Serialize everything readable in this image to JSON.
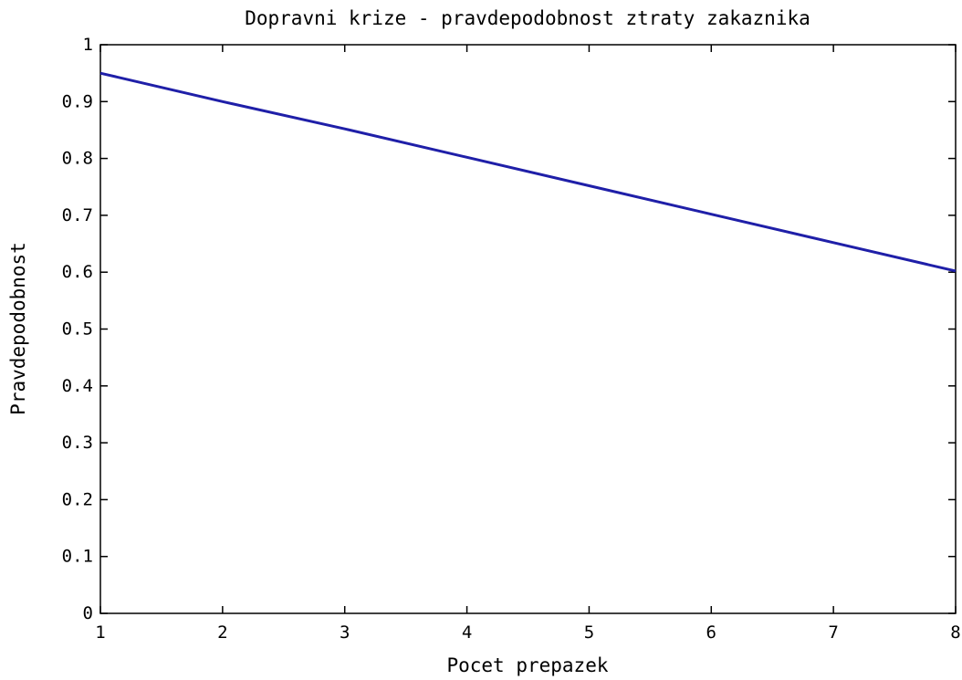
{
  "chart_data": {
    "type": "line",
    "title": "Dopravni krize - pravdepodobnost ztraty zakaznika",
    "xlabel": "Pocet prepazek",
    "ylabel": "Pravdepodobnost",
    "xlim": [
      1,
      8
    ],
    "ylim": [
      0,
      1
    ],
    "xticks": [
      1,
      2,
      3,
      4,
      5,
      6,
      7,
      8
    ],
    "yticks": [
      "0",
      "0.1",
      "0.2",
      "0.3",
      "0.4",
      "0.5",
      "0.6",
      "0.7",
      "0.8",
      "0.9",
      "1"
    ],
    "grid": false,
    "line_color": "#1f1fa8",
    "series": [
      {
        "x": [
          1,
          2,
          3,
          4,
          5,
          6,
          7,
          8
        ],
        "values": [
          0.95,
          0.9,
          0.852,
          0.802,
          0.752,
          0.702,
          0.652,
          0.602
        ]
      }
    ]
  }
}
